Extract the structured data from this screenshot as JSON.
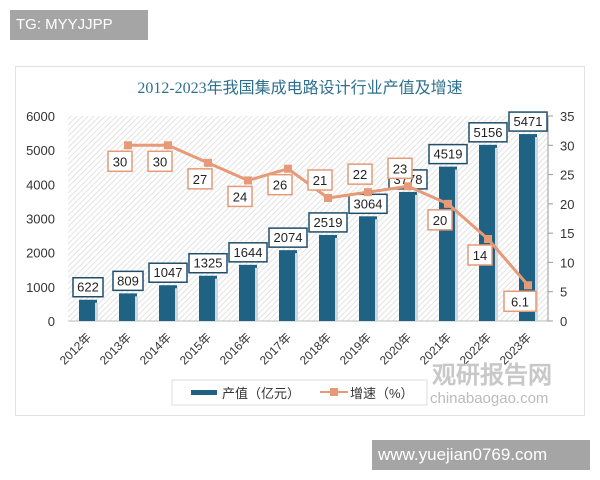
{
  "tag": "TG: MYYJJPP",
  "site": "www.yuejian0769.com",
  "watermark": {
    "cn": "观研报告网",
    "en": "chinabaogao.com"
  },
  "colors": {
    "bar": "#1f6283",
    "line": "#e69a78",
    "label_border_bar": "#1f4e6a",
    "label_border_line": "#e69a78",
    "title": "#2e6f8e"
  },
  "chart_data": {
    "type": "bar+line",
    "title": "2012-2023年我国集成电路设计行业产值及增速",
    "categories": [
      "2012年",
      "2013年",
      "2014年",
      "2015年",
      "2016年",
      "2017年",
      "2018年",
      "2019年",
      "2020年",
      "2021年",
      "2022年",
      "2023年"
    ],
    "series": [
      {
        "name": "产值（亿元）",
        "type": "bar",
        "axis": "left",
        "values": [
          622,
          809,
          1047,
          1325,
          1644,
          2074,
          2519,
          3064,
          3778,
          4519,
          5156,
          5471
        ]
      },
      {
        "name": "增速（%）",
        "type": "line",
        "axis": "right",
        "values": [
          null,
          30,
          30,
          27,
          24,
          26,
          21,
          22,
          23,
          20,
          14,
          6.1
        ]
      }
    ],
    "ylim_left": [
      0,
      6000
    ],
    "yticks_left": [
      0,
      1000,
      2000,
      3000,
      4000,
      5000,
      6000
    ],
    "ylim_right": [
      0,
      35
    ],
    "yticks_right": [
      0,
      5,
      10,
      15,
      20,
      25,
      30,
      35
    ],
    "grid": false,
    "background": "hatched",
    "legend": "bottom"
  }
}
